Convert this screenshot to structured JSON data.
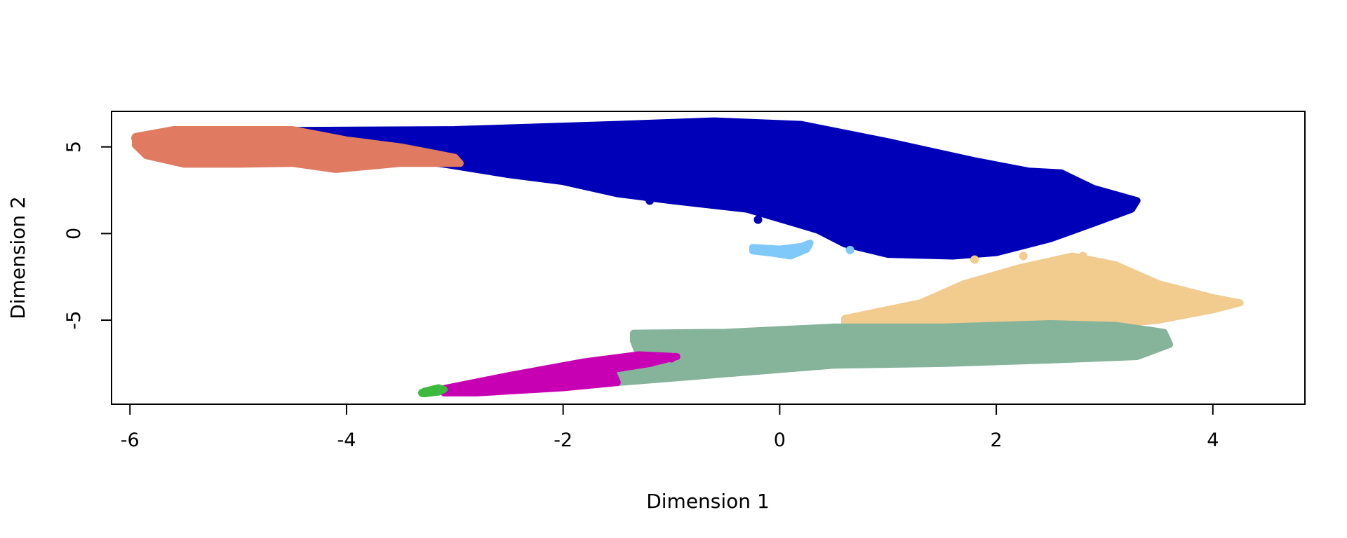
{
  "chart_data": {
    "type": "scatter",
    "title": "",
    "xlabel": "Dimension 1",
    "ylabel": "Dimension 2",
    "xlim": [
      -6.17,
      4.85
    ],
    "ylim": [
      -9.85,
      7.05
    ],
    "xticks": [
      -6,
      -4,
      -2,
      0,
      2,
      4
    ],
    "yticks": [
      -5,
      0,
      5
    ],
    "xtick_labels": [
      "-6",
      "-4",
      "-2",
      "0",
      "2",
      "4"
    ],
    "ytick_labels": [
      "-5",
      "0",
      "5"
    ],
    "grid": false,
    "legend": "none",
    "series": [
      {
        "color": "#0000B8",
        "outline": [
          [
            -4.5,
            5.95
          ],
          [
            -3.0,
            6.0
          ],
          [
            -1.5,
            6.3
          ],
          [
            -0.6,
            6.5
          ],
          [
            0.2,
            6.3
          ],
          [
            1.0,
            5.3
          ],
          [
            1.8,
            4.2
          ],
          [
            2.3,
            3.6
          ],
          [
            2.6,
            3.5
          ],
          [
            2.9,
            2.6
          ],
          [
            3.3,
            1.9
          ],
          [
            3.25,
            1.4
          ],
          [
            2.9,
            0.6
          ],
          [
            2.5,
            -0.3
          ],
          [
            2.0,
            -1.1
          ],
          [
            1.6,
            -1.3
          ],
          [
            1.0,
            -1.2
          ],
          [
            0.6,
            -0.6
          ],
          [
            0.35,
            0.2
          ],
          [
            -0.3,
            1.4
          ],
          [
            -1.0,
            1.9
          ],
          [
            -1.5,
            2.3
          ],
          [
            -2.0,
            3.0
          ],
          [
            -2.5,
            3.4
          ],
          [
            -3.1,
            4.0
          ],
          [
            -3.6,
            4.4
          ],
          [
            -4.3,
            5.1
          ]
        ],
        "points": [
          [
            -1.2,
            1.9
          ],
          [
            -1.0,
            2.0
          ],
          [
            -0.2,
            0.8
          ],
          [
            1.3,
            -1.2
          ],
          [
            0.65,
            -0.9
          ]
        ]
      },
      {
        "color": "#E07B62",
        "outline": [
          [
            -5.95,
            5.6
          ],
          [
            -5.6,
            6.0
          ],
          [
            -5.0,
            6.0
          ],
          [
            -4.5,
            6.0
          ],
          [
            -4.0,
            5.4
          ],
          [
            -3.5,
            5.0
          ],
          [
            -3.0,
            4.4
          ],
          [
            -2.95,
            4.05
          ],
          [
            -3.5,
            4.05
          ],
          [
            -4.1,
            3.7
          ],
          [
            -4.5,
            4.05
          ],
          [
            -5.0,
            4.0
          ],
          [
            -5.5,
            4.0
          ],
          [
            -5.85,
            4.5
          ],
          [
            -5.95,
            5.1
          ]
        ],
        "points": [
          [
            -5.95,
            5.5
          ],
          [
            -5.9,
            5.1
          ]
        ]
      },
      {
        "color": "#7EC8FA",
        "outline": [
          [
            -0.25,
            -0.8
          ],
          [
            0.0,
            -0.9
          ],
          [
            0.2,
            -0.75
          ],
          [
            0.28,
            -0.55
          ],
          [
            0.25,
            -0.9
          ],
          [
            0.1,
            -1.3
          ],
          [
            -0.05,
            -1.15
          ],
          [
            -0.25,
            -1.0
          ]
        ],
        "points": [
          [
            0.65,
            -0.95
          ]
        ]
      },
      {
        "color": "#F2CB8E",
        "outline": [
          [
            0.6,
            -4.9
          ],
          [
            1.3,
            -4.0
          ],
          [
            1.7,
            -2.9
          ],
          [
            2.2,
            -2.0
          ],
          [
            2.7,
            -1.3
          ],
          [
            3.1,
            -1.8
          ],
          [
            3.5,
            -2.9
          ],
          [
            4.0,
            -3.7
          ],
          [
            4.25,
            -4.0
          ],
          [
            4.0,
            -4.4
          ],
          [
            3.5,
            -5.0
          ],
          [
            3.0,
            -5.3
          ],
          [
            2.4,
            -5.6
          ],
          [
            1.8,
            -5.7
          ],
          [
            1.0,
            -5.6
          ],
          [
            0.6,
            -5.3
          ]
        ],
        "points": [
          [
            1.8,
            -1.5
          ],
          [
            2.25,
            -1.3
          ],
          [
            2.8,
            -1.3
          ]
        ]
      },
      {
        "color": "#85B49A",
        "outline": [
          [
            -1.35,
            -5.75
          ],
          [
            -0.5,
            -5.7
          ],
          [
            0.5,
            -5.4
          ],
          [
            1.5,
            -5.4
          ],
          [
            2.5,
            -5.2
          ],
          [
            3.1,
            -5.3
          ],
          [
            3.55,
            -5.7
          ],
          [
            3.6,
            -6.4
          ],
          [
            3.3,
            -7.1
          ],
          [
            2.5,
            -7.3
          ],
          [
            1.5,
            -7.5
          ],
          [
            0.5,
            -7.6
          ],
          [
            -0.5,
            -8.1
          ],
          [
            -1.5,
            -8.6
          ],
          [
            -1.65,
            -8.0
          ],
          [
            -1.3,
            -7.0
          ],
          [
            -1.35,
            -6.2
          ]
        ],
        "points": [
          [
            -1.5,
            -8.5
          ]
        ]
      },
      {
        "color": "#C800B4",
        "outline": [
          [
            -3.1,
            -8.95
          ],
          [
            -2.5,
            -8.2
          ],
          [
            -1.8,
            -7.4
          ],
          [
            -1.3,
            -7.0
          ],
          [
            -0.95,
            -7.1
          ],
          [
            -1.2,
            -7.5
          ],
          [
            -1.55,
            -7.85
          ],
          [
            -1.5,
            -8.6
          ],
          [
            -2.0,
            -8.9
          ],
          [
            -2.8,
            -9.2
          ],
          [
            -3.1,
            -9.2
          ]
        ],
        "points": [
          [
            -1.0,
            -7.2
          ]
        ]
      },
      {
        "color": "#3DBA3D",
        "outline": [
          [
            -3.28,
            -9.1
          ],
          [
            -3.15,
            -8.9
          ],
          [
            -3.1,
            -9.0
          ],
          [
            -3.15,
            -9.15
          ],
          [
            -3.28,
            -9.25
          ]
        ],
        "points": [
          [
            -3.3,
            -9.2
          ],
          [
            -3.15,
            -9.05
          ]
        ]
      }
    ]
  }
}
